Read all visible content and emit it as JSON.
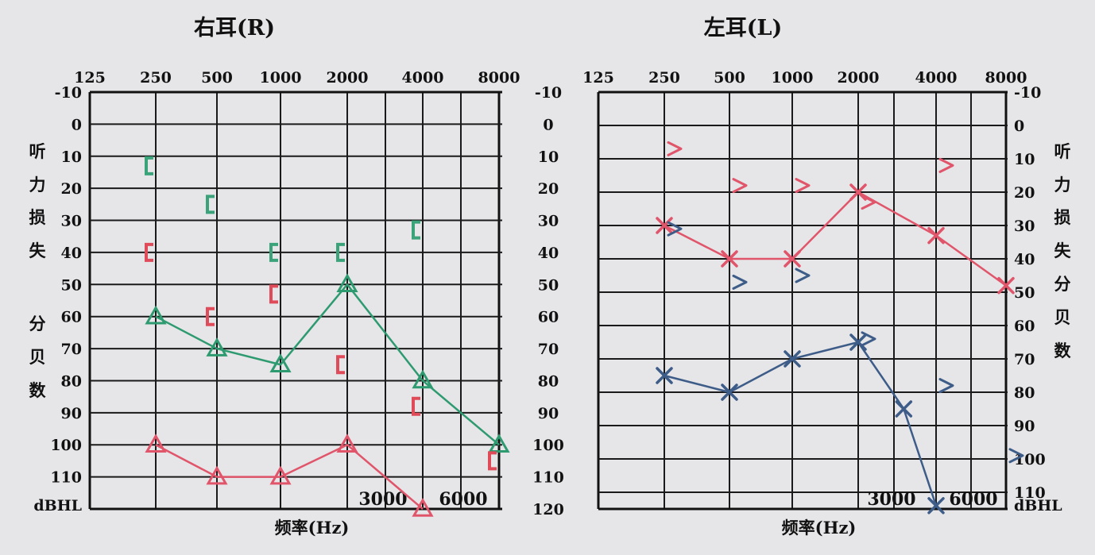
{
  "colors": {
    "paper": "#e6e6e9",
    "grid": "#1a1a1a",
    "green": "#2e9a70",
    "red": "#e0556a",
    "blue": "#3d5c88",
    "bone_green": "#3aa37a",
    "bone_red": "#e04b5a"
  },
  "freq_labels": [
    "125",
    "250",
    "500",
    "1000",
    "2000",
    "4000",
    "8000"
  ],
  "db_labels": [
    "-10",
    "0",
    "10",
    "20",
    "30",
    "40",
    "50",
    "60",
    "70",
    "80",
    "90",
    "100",
    "110"
  ],
  "db_labels_center": [
    "-10",
    "0",
    "10",
    "20",
    "30",
    "40",
    "50",
    "60",
    "70",
    "80",
    "90",
    "100",
    "110",
    "120"
  ],
  "unit_label": "dBHL",
  "vertical_caption": [
    "听",
    "力",
    "损",
    "失",
    "分",
    "贝",
    "数"
  ],
  "xlabel": "频率(Hz)",
  "mid_freq_3000": "3000",
  "mid_freq_6000": "6000",
  "chart_data": [
    {
      "type": "line",
      "title": "右耳(R)",
      "xlabel": "频率(Hz)",
      "ylabel": "听力损失分贝数",
      "x_scale": "log2",
      "x_ticks": [
        125,
        250,
        500,
        1000,
        2000,
        4000,
        8000
      ],
      "ylim": [
        -10,
        120
      ],
      "y_inverted": true,
      "grid": true,
      "series": [
        {
          "color": "#2e9a70",
          "marker": "triangle",
          "connected": true,
          "points": [
            [
              250,
              60
            ],
            [
              500,
              70
            ],
            [
              1000,
              75
            ],
            [
              2000,
              50
            ],
            [
              4000,
              80
            ],
            [
              8000,
              100
            ]
          ]
        },
        {
          "color": "#e0556a",
          "marker": "triangle",
          "connected": true,
          "points": [
            [
              250,
              100
            ],
            [
              500,
              110
            ],
            [
              1000,
              110
            ],
            [
              2000,
              100
            ],
            [
              4000,
              120
            ]
          ]
        },
        {
          "color": "#3aa37a",
          "marker": "bracket",
          "connected": false,
          "points": [
            [
              250,
              13
            ],
            [
              500,
              25
            ],
            [
              1000,
              40
            ],
            [
              2000,
              40
            ],
            [
              4000,
              33
            ]
          ]
        },
        {
          "color": "#e04b5a",
          "marker": "bracket",
          "connected": false,
          "points": [
            [
              250,
              40
            ],
            [
              500,
              60
            ],
            [
              1000,
              53
            ],
            [
              2000,
              75
            ],
            [
              4000,
              88
            ],
            [
              8000,
              105
            ]
          ]
        }
      ]
    },
    {
      "type": "line",
      "title": "左耳(L)",
      "xlabel": "频率(Hz)",
      "ylabel": "听力损失分贝数",
      "x_scale": "log2",
      "x_ticks": [
        125,
        250,
        500,
        1000,
        2000,
        4000,
        8000
      ],
      "ylim": [
        -10,
        110
      ],
      "y_inverted": true,
      "grid": true,
      "series": [
        {
          "color": "#e0556a",
          "marker": "cross",
          "connected": true,
          "points": [
            [
              250,
              30
            ],
            [
              500,
              40
            ],
            [
              1000,
              40
            ],
            [
              2000,
              20
            ],
            [
              4000,
              33
            ],
            [
              8000,
              48
            ]
          ]
        },
        {
          "color": "#3d5c88",
          "marker": "cross",
          "connected": true,
          "points": [
            [
              250,
              75
            ],
            [
              500,
              80
            ],
            [
              1000,
              70
            ],
            [
              2000,
              65
            ],
            [
              3000,
              85
            ],
            [
              4000,
              114
            ]
          ]
        },
        {
          "color": "#e0556a",
          "marker": "chevron",
          "connected": false,
          "points": [
            [
              250,
              7
            ],
            [
              500,
              18
            ],
            [
              1000,
              18
            ],
            [
              2000,
              23
            ],
            [
              4000,
              12
            ]
          ]
        },
        {
          "color": "#3d5c88",
          "marker": "chevron",
          "connected": false,
          "points": [
            [
              250,
              31
            ],
            [
              500,
              47
            ],
            [
              1000,
              45
            ],
            [
              2000,
              64
            ],
            [
              4000,
              78
            ],
            [
              8000,
              99
            ]
          ]
        }
      ]
    }
  ]
}
